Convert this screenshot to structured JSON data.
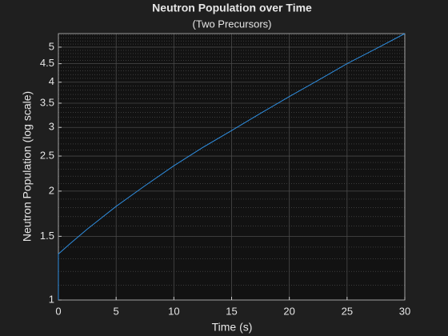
{
  "chart_data": {
    "type": "line",
    "title": "Neutron Population over Time",
    "subtitle": "(Two Precursors)",
    "x_label": "Time (s)",
    "y_label": "Neutron Population (log scale)",
    "x": [
      0,
      0,
      1,
      2.5,
      5,
      7.5,
      10,
      12.5,
      15,
      17.5,
      20,
      22.5,
      25,
      27.5,
      30
    ],
    "series": [
      {
        "color": "#2f8ee0",
        "values": [
          1,
          1.34,
          1.43,
          1.57,
          1.815,
          2.07,
          2.35,
          2.64,
          2.94,
          3.28,
          3.65,
          4.05,
          4.5,
          4.95,
          5.45
        ]
      }
    ],
    "xlim": [
      0,
      30
    ],
    "xticks": [
      0,
      5,
      10,
      15,
      20,
      25,
      30
    ],
    "ylim": [
      1,
      5.45
    ],
    "yticks": [
      1,
      1.5,
      2,
      2.5,
      3,
      3.5,
      4,
      4.5,
      5
    ],
    "y_scale": "log",
    "grid": true,
    "minor_grid": true
  }
}
